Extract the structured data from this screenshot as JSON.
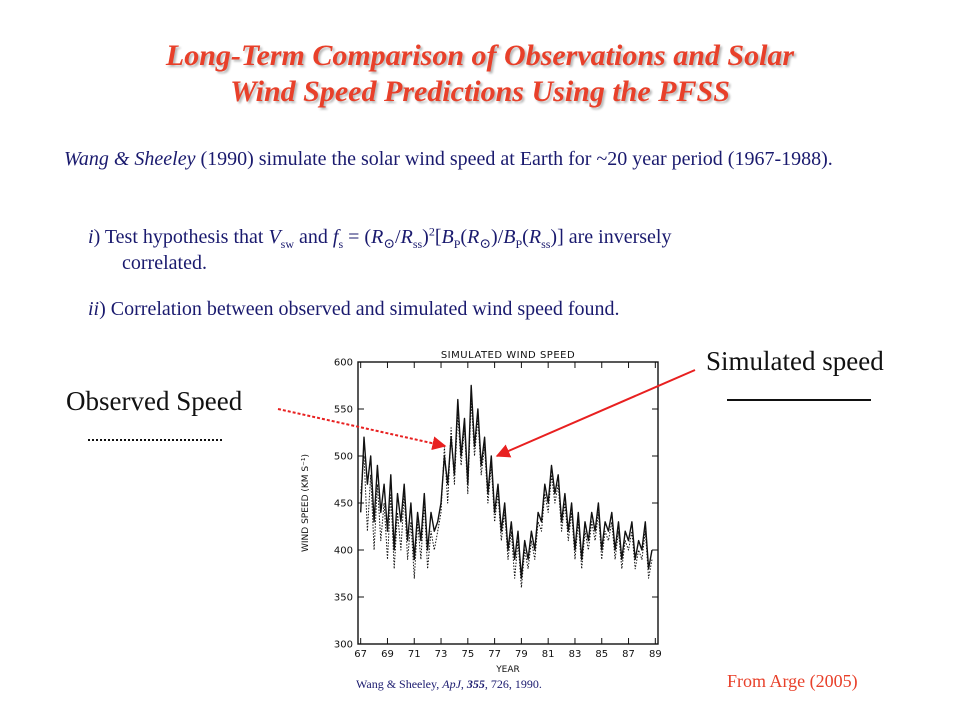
{
  "title": {
    "line1": "Long-Term Comparison of Observations and Solar",
    "line2": "Wind Speed Predictions Using the PFSS"
  },
  "intro": {
    "authors": "Wang & Sheeley",
    "rest": " (1990) simulate the solar wind speed at Earth for ~20 year period (1967-1988)."
  },
  "items": [
    {
      "marker": "i",
      "text_a": ")  Test hypothesis that ",
      "text_b": " are inversely",
      "continuation": "correlated."
    },
    {
      "marker": "ii",
      "text": ") Correlation between observed and simulated wind speed found."
    }
  ],
  "labels": {
    "simulated": "Simulated speed",
    "observed": "Observed Speed"
  },
  "citation": {
    "authors": "Wang & Sheeley, ",
    "journal": "ApJ",
    "sep": ", ",
    "volume": "355",
    "pages": ", 726, 1990."
  },
  "credit": "From Arge (2005)",
  "colors": {
    "title": "#e8402a",
    "body_text": "#1a1a6e",
    "arrows": "#e82020"
  },
  "chart_data": {
    "type": "line",
    "title": "SIMULATED WIND SPEED",
    "xlabel": "YEAR",
    "ylabel": "WIND SPEED (KM S⁻¹)",
    "xlim": [
      1966.8,
      1989.2
    ],
    "ylim": [
      300,
      600
    ],
    "x_ticks": [
      1967,
      1969,
      1971,
      1973,
      1975,
      1977,
      1979,
      1981,
      1983,
      1985,
      1987,
      1989
    ],
    "x_tick_labels": [
      "67",
      "69",
      "71",
      "73",
      "75",
      "77",
      "79",
      "81",
      "83",
      "85",
      "87",
      "89"
    ],
    "y_ticks": [
      300,
      350,
      400,
      450,
      500,
      550,
      600
    ],
    "series": [
      {
        "style": "solid",
        "x": [
          1967.0,
          1967.25,
          1967.5,
          1967.75,
          1968.0,
          1968.25,
          1968.5,
          1968.75,
          1969.0,
          1969.25,
          1969.5,
          1969.75,
          1970.0,
          1970.25,
          1970.5,
          1970.75,
          1971.0,
          1971.25,
          1971.5,
          1971.75,
          1972.0,
          1972.25,
          1972.5,
          1972.75,
          1973.0,
          1973.25,
          1973.5,
          1973.75,
          1974.0,
          1974.25,
          1974.5,
          1974.75,
          1975.0,
          1975.25,
          1975.5,
          1975.75,
          1976.0,
          1976.25,
          1976.5,
          1976.75,
          1977.0,
          1977.25,
          1977.5,
          1977.75,
          1978.0,
          1978.25,
          1978.5,
          1978.75,
          1979.0,
          1979.25,
          1979.5,
          1979.75,
          1980.0,
          1980.25,
          1980.5,
          1980.75,
          1981.0,
          1981.25,
          1981.5,
          1981.75,
          1982.0,
          1982.25,
          1982.5,
          1982.75,
          1983.0,
          1983.25,
          1983.5,
          1983.75,
          1984.0,
          1984.25,
          1984.5,
          1984.75,
          1985.0,
          1985.25,
          1985.5,
          1985.75,
          1986.0,
          1986.25,
          1986.5,
          1986.75,
          1987.0,
          1987.25,
          1987.5,
          1987.75,
          1988.0,
          1988.25,
          1988.5,
          1988.75
        ],
        "y": [
          440,
          520,
          470,
          500,
          430,
          490,
          440,
          470,
          420,
          480,
          400,
          460,
          430,
          470,
          410,
          450,
          390,
          440,
          410,
          460,
          400,
          440,
          420,
          430,
          450,
          500,
          470,
          520,
          480,
          560,
          500,
          540,
          470,
          575,
          510,
          550,
          490,
          520,
          460,
          500,
          440,
          470,
          420,
          450,
          400,
          430,
          390,
          420,
          370,
          410,
          390,
          420,
          400,
          440,
          430,
          470,
          450,
          490,
          460,
          480,
          430,
          460,
          420,
          450,
          400,
          440,
          390,
          430,
          410,
          440,
          420,
          450,
          400,
          430,
          420,
          440,
          400,
          430,
          390,
          420,
          410,
          430,
          390,
          410,
          400,
          430,
          380,
          400
        ]
      },
      {
        "style": "dotted",
        "x": [
          1967.0,
          1967.25,
          1967.5,
          1967.75,
          1968.0,
          1968.25,
          1968.5,
          1968.75,
          1969.0,
          1969.25,
          1969.5,
          1969.75,
          1970.0,
          1970.25,
          1970.5,
          1970.75,
          1971.0,
          1971.25,
          1971.5,
          1971.75,
          1972.0,
          1972.25,
          1972.5,
          1972.75,
          1973.0,
          1973.25,
          1973.5,
          1973.75,
          1974.0,
          1974.25,
          1974.5,
          1974.75,
          1975.0,
          1975.25,
          1975.5,
          1975.75,
          1976.0,
          1976.25,
          1976.5,
          1976.75,
          1977.0,
          1977.25,
          1977.5,
          1977.75,
          1978.0,
          1978.25,
          1978.5,
          1978.75,
          1979.0,
          1979.25,
          1979.5,
          1979.75,
          1980.0,
          1980.25,
          1980.5,
          1980.75,
          1981.0,
          1981.25,
          1981.5,
          1981.75,
          1982.0,
          1982.25,
          1982.5,
          1982.75,
          1983.0,
          1983.25,
          1983.5,
          1983.75,
          1984.0,
          1984.25,
          1984.5,
          1984.75,
          1985.0,
          1985.25,
          1985.5,
          1985.75,
          1986.0,
          1986.25,
          1986.5,
          1986.75,
          1987.0,
          1987.25,
          1987.5,
          1987.75,
          1988.0,
          1988.25,
          1988.5,
          1988.75
        ],
        "y": [
          460,
          500,
          420,
          480,
          400,
          470,
          410,
          450,
          390,
          460,
          380,
          440,
          400,
          460,
          390,
          430,
          370,
          430,
          390,
          450,
          380,
          420,
          400,
          420,
          440,
          510,
          450,
          530,
          470,
          545,
          490,
          530,
          460,
          560,
          500,
          540,
          480,
          510,
          450,
          490,
          430,
          460,
          410,
          440,
          390,
          420,
          370,
          410,
          360,
          400,
          380,
          410,
          390,
          430,
          420,
          460,
          440,
          480,
          450,
          470,
          420,
          450,
          410,
          440,
          390,
          430,
          380,
          420,
          400,
          430,
          410,
          440,
          390,
          420,
          410,
          430,
          390,
          420,
          380,
          410,
          400,
          420,
          380,
          400,
          390,
          420,
          370,
          390
        ]
      }
    ]
  }
}
